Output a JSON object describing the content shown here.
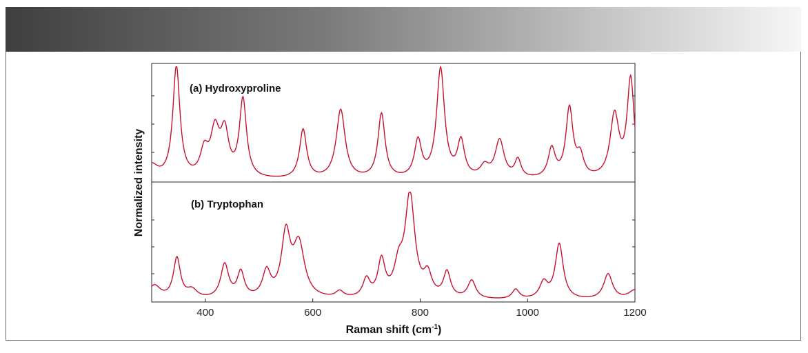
{
  "colors": {
    "header_dark": "#3f3f3f",
    "header_light": "#f6f6f6",
    "line": "#c8102e",
    "axis": "#222222"
  },
  "chart_data": {
    "type": "line",
    "title": "",
    "xlabel": "Raman shift (cm",
    "xlabel_sup": "-1",
    "xlabel_close": ")",
    "ylabel": "Normalized intensity",
    "xlim": [
      300,
      1200
    ],
    "ylim": [
      0,
      1
    ],
    "xticks": [
      400,
      600,
      800,
      1000,
      1200
    ],
    "xtick_labels": [
      "400",
      "600",
      "800",
      "1000",
      "1200"
    ],
    "grid": false,
    "series": [
      {
        "name": "(a) Hydroxyproline",
        "panel": "top",
        "baseline": 0.0,
        "peaks": [
          {
            "center": 300,
            "height": 0.12,
            "width": 14
          },
          {
            "center": 346,
            "height": 1.0,
            "width": 8
          },
          {
            "center": 398,
            "height": 0.22,
            "width": 9
          },
          {
            "center": 418,
            "height": 0.4,
            "width": 10
          },
          {
            "center": 436,
            "height": 0.38,
            "width": 9
          },
          {
            "center": 470,
            "height": 0.7,
            "width": 8
          },
          {
            "center": 582,
            "height": 0.44,
            "width": 8
          },
          {
            "center": 652,
            "height": 0.62,
            "width": 10
          },
          {
            "center": 728,
            "height": 0.58,
            "width": 8
          },
          {
            "center": 796,
            "height": 0.33,
            "width": 8
          },
          {
            "center": 838,
            "height": 0.98,
            "width": 9
          },
          {
            "center": 876,
            "height": 0.32,
            "width": 8
          },
          {
            "center": 920,
            "height": 0.1,
            "width": 10
          },
          {
            "center": 948,
            "height": 0.34,
            "width": 10
          },
          {
            "center": 982,
            "height": 0.16,
            "width": 7
          },
          {
            "center": 1045,
            "height": 0.26,
            "width": 8
          },
          {
            "center": 1078,
            "height": 0.62,
            "width": 8
          },
          {
            "center": 1098,
            "height": 0.18,
            "width": 8
          },
          {
            "center": 1162,
            "height": 0.56,
            "width": 10
          },
          {
            "center": 1192,
            "height": 0.88,
            "width": 8
          }
        ]
      },
      {
        "name": "(b) Tryptophan",
        "panel": "bottom",
        "baseline": 0.0,
        "peaks": [
          {
            "center": 305,
            "height": 0.13,
            "width": 14
          },
          {
            "center": 347,
            "height": 0.38,
            "width": 8
          },
          {
            "center": 375,
            "height": 0.08,
            "width": 12
          },
          {
            "center": 436,
            "height": 0.32,
            "width": 9
          },
          {
            "center": 466,
            "height": 0.24,
            "width": 8
          },
          {
            "center": 514,
            "height": 0.24,
            "width": 9
          },
          {
            "center": 550,
            "height": 0.58,
            "width": 10
          },
          {
            "center": 574,
            "height": 0.5,
            "width": 13
          },
          {
            "center": 650,
            "height": 0.06,
            "width": 9
          },
          {
            "center": 700,
            "height": 0.17,
            "width": 8
          },
          {
            "center": 728,
            "height": 0.34,
            "width": 8
          },
          {
            "center": 760,
            "height": 0.26,
            "width": 10
          },
          {
            "center": 781,
            "height": 0.96,
            "width": 11
          },
          {
            "center": 814,
            "height": 0.2,
            "width": 9
          },
          {
            "center": 850,
            "height": 0.24,
            "width": 8
          },
          {
            "center": 896,
            "height": 0.17,
            "width": 9
          },
          {
            "center": 978,
            "height": 0.09,
            "width": 8
          },
          {
            "center": 1030,
            "height": 0.15,
            "width": 9
          },
          {
            "center": 1059,
            "height": 0.52,
            "width": 9
          },
          {
            "center": 1150,
            "height": 0.24,
            "width": 10
          },
          {
            "center": 1200,
            "height": 0.09,
            "width": 14
          }
        ]
      }
    ]
  }
}
